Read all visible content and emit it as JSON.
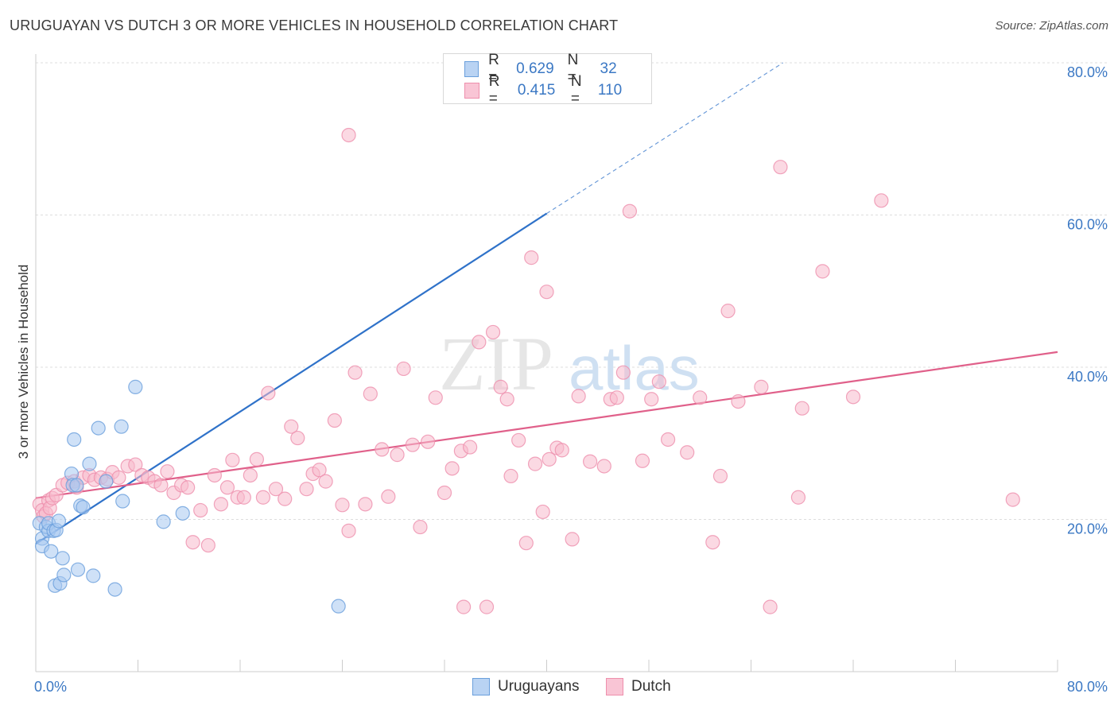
{
  "title": "URUGUAYAN VS DUTCH 3 OR MORE VEHICLES IN HOUSEHOLD CORRELATION CHART",
  "source": "Source: ZipAtlas.com",
  "watermark": {
    "zip": "ZIP",
    "atlas": "atlas"
  },
  "legend": {
    "rows": [
      {
        "r_label": "R =",
        "r_value": "0.629",
        "n_label": "N =",
        "n_value": "32"
      },
      {
        "r_label": "R =",
        "r_value": "0.415",
        "n_label": "N =",
        "n_value": "110"
      }
    ]
  },
  "colors": {
    "uruguayans_fill": "#a8c8f0",
    "uruguayans_stroke": "#6a9fdc",
    "uruguayans_line": "#2f72c9",
    "dutch_fill": "#f7b9cc",
    "dutch_stroke": "#ee8fac",
    "dutch_line": "#e0608a",
    "tick": "#3b78c4",
    "grid": "#dddddd"
  },
  "chart_data": {
    "type": "scatter",
    "title": "URUGUAYAN VS DUTCH 3 OR MORE VEHICLES IN HOUSEHOLD CORRELATION CHART",
    "xlabel": "",
    "ylabel": "3 or more Vehicles in Household",
    "xlim": [
      0,
      80
    ],
    "ylim": [
      0,
      80
    ],
    "x_tick_labels": [
      "0.0%",
      "80.0%"
    ],
    "y_ticks": [
      20,
      40,
      60,
      80
    ],
    "y_tick_labels": [
      "20.0%",
      "40.0%",
      "60.0%",
      "80.0%"
    ],
    "grid": true,
    "legend_position": "bottom",
    "series": [
      {
        "name": "Uruguayans",
        "r": 0.629,
        "n": 32,
        "trend": {
          "x0": 0,
          "y0": 16.8,
          "x1": 40,
          "y1": 60.2,
          "dashed_to": [
            58.5,
            80.0
          ]
        },
        "points": [
          [
            0.3,
            19.5
          ],
          [
            0.5,
            17.5
          ],
          [
            0.5,
            16.5
          ],
          [
            0.8,
            19.0
          ],
          [
            1.0,
            18.5
          ],
          [
            1.0,
            19.5
          ],
          [
            1.2,
            15.8
          ],
          [
            1.4,
            18.5
          ],
          [
            1.5,
            11.3
          ],
          [
            1.6,
            18.6
          ],
          [
            1.8,
            19.8
          ],
          [
            1.9,
            11.6
          ],
          [
            2.1,
            14.9
          ],
          [
            2.2,
            12.7
          ],
          [
            2.8,
            26.0
          ],
          [
            2.9,
            24.5
          ],
          [
            3.0,
            30.5
          ],
          [
            3.2,
            24.5
          ],
          [
            3.3,
            13.4
          ],
          [
            3.5,
            21.8
          ],
          [
            3.7,
            21.6
          ],
          [
            4.2,
            27.3
          ],
          [
            4.5,
            12.6
          ],
          [
            4.9,
            32.0
          ],
          [
            5.5,
            25.0
          ],
          [
            6.2,
            10.8
          ],
          [
            6.7,
            32.2
          ],
          [
            6.8,
            22.4
          ],
          [
            7.8,
            37.4
          ],
          [
            10.0,
            19.7
          ],
          [
            11.5,
            20.8
          ],
          [
            23.7,
            8.6
          ]
        ]
      },
      {
        "name": "Dutch",
        "r": 0.415,
        "n": 110,
        "trend": {
          "x0": 0,
          "y0": 22.8,
          "x1": 80,
          "y1": 42.0
        },
        "points": [
          [
            0.3,
            22.0
          ],
          [
            0.5,
            21.2
          ],
          [
            0.6,
            20.4
          ],
          [
            0.8,
            20.8
          ],
          [
            1.0,
            22.5
          ],
          [
            1.1,
            21.5
          ],
          [
            1.3,
            22.8
          ],
          [
            1.6,
            23.2
          ],
          [
            2.1,
            24.5
          ],
          [
            2.5,
            24.8
          ],
          [
            3.0,
            25.0
          ],
          [
            3.2,
            24.2
          ],
          [
            3.7,
            25.5
          ],
          [
            4.2,
            25.8
          ],
          [
            4.6,
            25.2
          ],
          [
            5.1,
            25.5
          ],
          [
            5.6,
            25.3
          ],
          [
            6.0,
            26.2
          ],
          [
            6.5,
            25.5
          ],
          [
            7.2,
            27.0
          ],
          [
            7.8,
            27.2
          ],
          [
            8.3,
            25.8
          ],
          [
            8.8,
            25.5
          ],
          [
            9.3,
            25.0
          ],
          [
            9.8,
            24.5
          ],
          [
            10.3,
            26.3
          ],
          [
            10.8,
            23.5
          ],
          [
            11.4,
            24.5
          ],
          [
            11.9,
            24.2
          ],
          [
            12.3,
            17.0
          ],
          [
            12.9,
            21.2
          ],
          [
            13.5,
            16.6
          ],
          [
            14.0,
            25.8
          ],
          [
            14.5,
            22.0
          ],
          [
            15.0,
            24.2
          ],
          [
            15.4,
            27.8
          ],
          [
            15.8,
            22.9
          ],
          [
            16.3,
            22.9
          ],
          [
            16.8,
            25.8
          ],
          [
            17.3,
            27.9
          ],
          [
            17.8,
            22.9
          ],
          [
            18.2,
            36.6
          ],
          [
            18.8,
            24.0
          ],
          [
            19.5,
            22.7
          ],
          [
            20.0,
            32.2
          ],
          [
            20.5,
            30.7
          ],
          [
            21.2,
            24.0
          ],
          [
            21.7,
            26.0
          ],
          [
            22.2,
            26.5
          ],
          [
            22.7,
            25.0
          ],
          [
            23.4,
            33.0
          ],
          [
            24.0,
            21.9
          ],
          [
            24.5,
            18.5
          ],
          [
            25.0,
            39.3
          ],
          [
            25.8,
            22.0
          ],
          [
            26.2,
            36.5
          ],
          [
            27.1,
            29.2
          ],
          [
            27.6,
            23.0
          ],
          [
            28.3,
            28.5
          ],
          [
            28.8,
            39.8
          ],
          [
            29.5,
            29.8
          ],
          [
            30.1,
            19.0
          ],
          [
            30.7,
            30.2
          ],
          [
            31.3,
            36.0
          ],
          [
            32.0,
            23.5
          ],
          [
            32.6,
            26.7
          ],
          [
            33.3,
            29.0
          ],
          [
            34.0,
            29.5
          ],
          [
            34.7,
            43.3
          ],
          [
            35.3,
            8.5
          ],
          [
            35.8,
            44.6
          ],
          [
            36.4,
            37.4
          ],
          [
            36.9,
            35.8
          ],
          [
            37.2,
            25.7
          ],
          [
            37.8,
            30.4
          ],
          [
            38.4,
            16.9
          ],
          [
            39.1,
            27.3
          ],
          [
            39.7,
            21.0
          ],
          [
            40.2,
            27.9
          ],
          [
            40.8,
            29.4
          ],
          [
            41.2,
            29.1
          ],
          [
            42.0,
            17.4
          ],
          [
            42.5,
            36.2
          ],
          [
            43.4,
            27.6
          ],
          [
            44.5,
            27.0
          ],
          [
            45.0,
            35.8
          ],
          [
            45.5,
            36.0
          ],
          [
            46.0,
            39.3
          ],
          [
            46.5,
            60.5
          ],
          [
            47.5,
            27.7
          ],
          [
            48.2,
            35.8
          ],
          [
            48.8,
            38.1
          ],
          [
            49.5,
            30.5
          ],
          [
            51.0,
            28.8
          ],
          [
            52.0,
            36.0
          ],
          [
            53.0,
            17.0
          ],
          [
            53.6,
            25.7
          ],
          [
            54.2,
            47.4
          ],
          [
            55.0,
            35.5
          ],
          [
            56.8,
            37.4
          ],
          [
            58.3,
            66.3
          ],
          [
            59.7,
            22.9
          ],
          [
            60.0,
            34.6
          ],
          [
            61.6,
            52.6
          ],
          [
            64.0,
            36.1
          ],
          [
            66.2,
            61.9
          ],
          [
            76.5,
            22.6
          ],
          [
            38.8,
            54.4
          ],
          [
            40.0,
            49.9
          ],
          [
            24.5,
            70.5
          ],
          [
            57.5,
            8.5
          ],
          [
            33.5,
            8.5
          ]
        ]
      }
    ]
  },
  "bottom_legend": [
    {
      "label": "Uruguayans"
    },
    {
      "label": "Dutch"
    }
  ]
}
